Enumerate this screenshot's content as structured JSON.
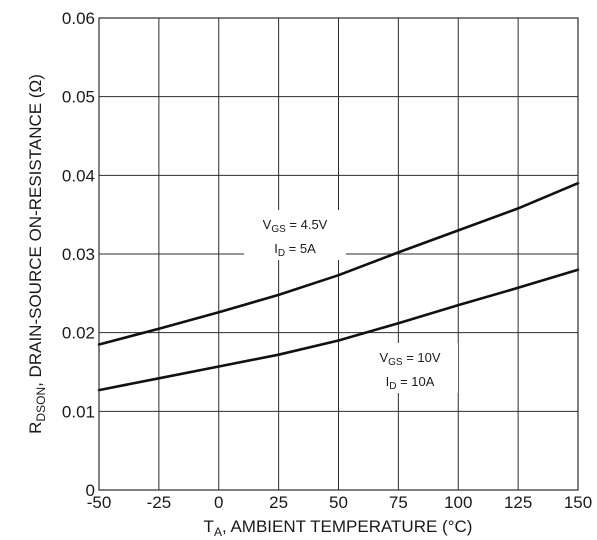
{
  "chart_data": {
    "type": "line",
    "title": "",
    "xlabel": "T",
    "xlabel_sub": "A",
    "xlabel_rest": ", AMBIENT TEMPERATURE (°C)",
    "ylabel": "R",
    "ylabel_sub": "DSON",
    "ylabel_rest": ", DRAIN-SOURCE ON-RESISTANCE (Ω)",
    "xlim": [
      -50,
      150
    ],
    "ylim": [
      0,
      0.06
    ],
    "x_ticks": [
      -50,
      -25,
      0,
      25,
      50,
      75,
      100,
      125,
      150
    ],
    "x_tick_labels": [
      "-50",
      "-25",
      "0",
      "25",
      "50",
      "75",
      "100",
      "125",
      "150"
    ],
    "y_ticks": [
      0,
      0.01,
      0.02,
      0.03,
      0.04,
      0.05,
      0.06
    ],
    "y_tick_labels": [
      "0",
      "0.01",
      "0.02",
      "0.03",
      "0.04",
      "0.05",
      "0.06"
    ],
    "grid": true,
    "series": [
      {
        "x": [
          -50,
          -25,
          0,
          25,
          50,
          75,
          100,
          125,
          150
        ],
        "values": [
          0.0185,
          0.0205,
          0.0226,
          0.0248,
          0.0273,
          0.0302,
          0.033,
          0.0358,
          0.039
        ]
      },
      {
        "x": [
          -50,
          -25,
          0,
          25,
          50,
          75,
          100,
          125,
          150
        ],
        "values": [
          0.0127,
          0.0142,
          0.0157,
          0.0172,
          0.019,
          0.0212,
          0.0235,
          0.0257,
          0.028
        ]
      }
    ],
    "annotations": [
      {
        "line1_main": "V",
        "line1_sub": "GS",
        "line1_rest": " = 4.5V",
        "line2_main": "I",
        "line2_sub": "D",
        "line2_rest": " = 5A"
      },
      {
        "line1_main": "V",
        "line1_sub": "GS",
        "line1_rest": " = 10V",
        "line2_main": "I",
        "line2_sub": "D",
        "line2_rest": " = 10A"
      }
    ]
  }
}
